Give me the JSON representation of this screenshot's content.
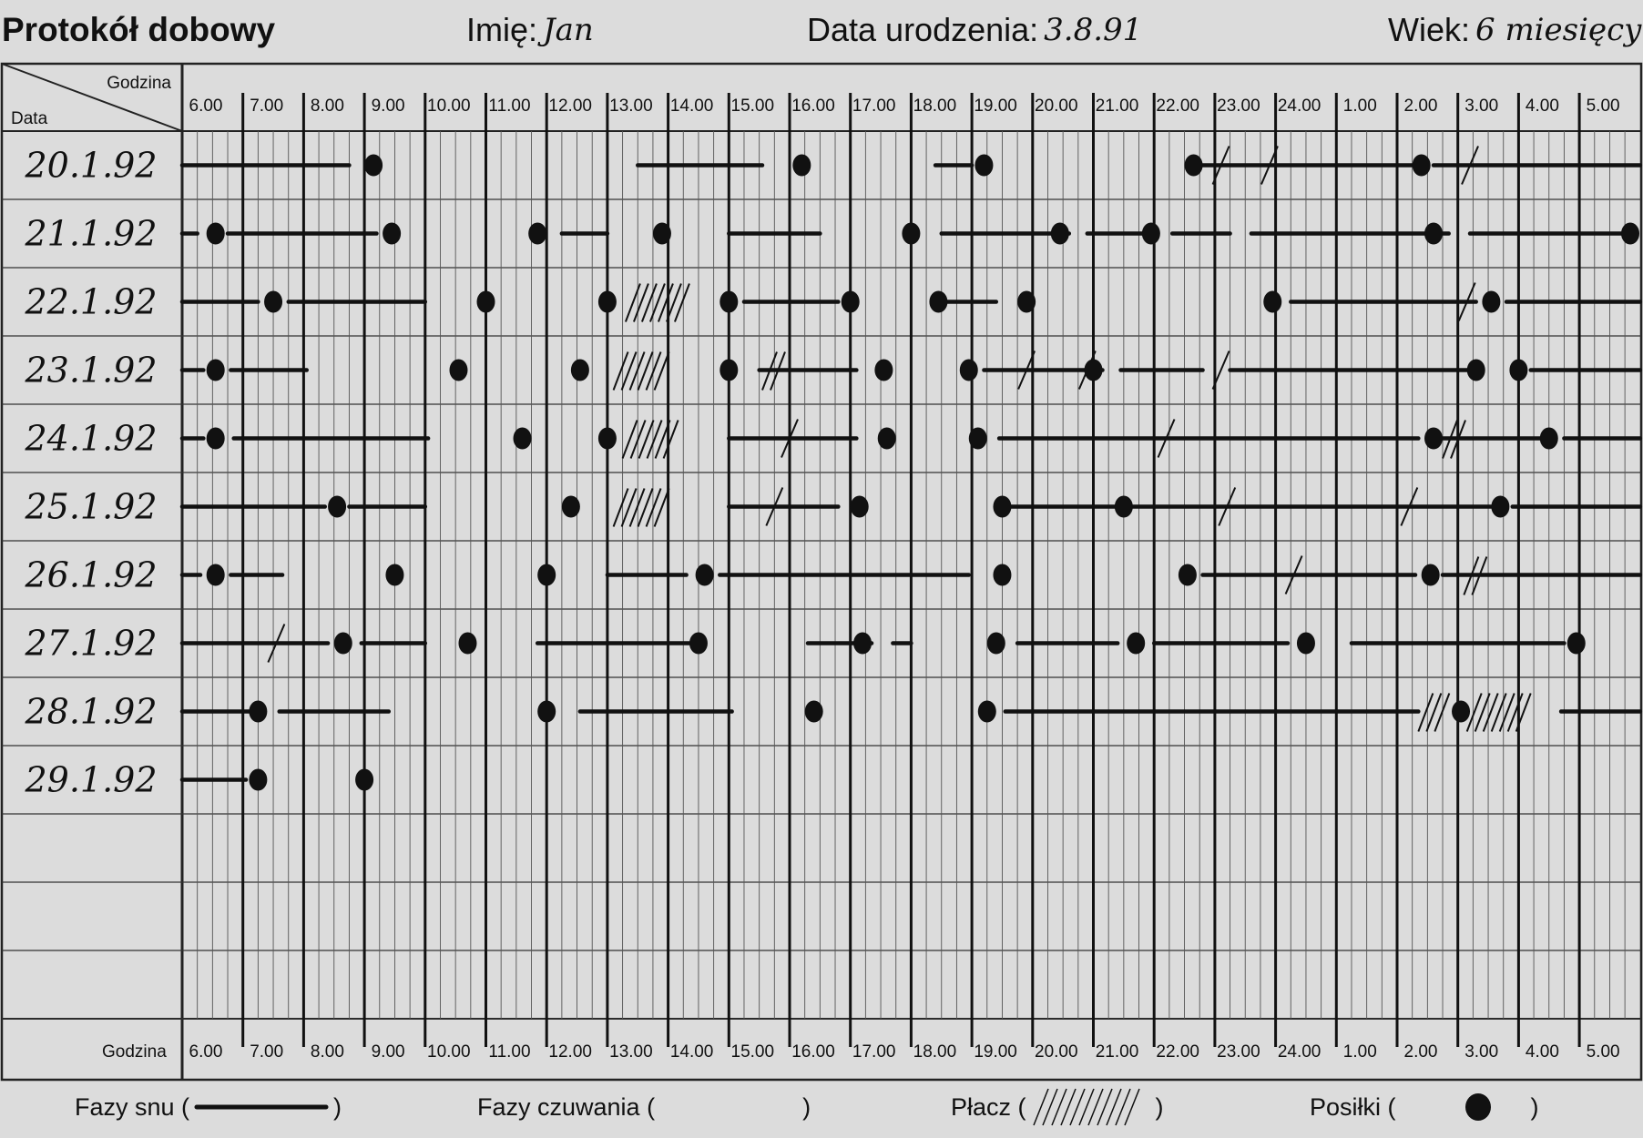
{
  "header": {
    "title": "Protokół dobowy",
    "name_label": "Imię:",
    "name_value": "Jan",
    "birth_label": "Data urodzenia:",
    "birth_value": "3.8.91",
    "age_label": "Wiek:",
    "age_value": "6 miesięcy"
  },
  "table": {
    "corner_hour_label": "Godzina",
    "corner_date_label": "Data",
    "bottom_hour_label": "Godzina",
    "hours": [
      "6.00",
      "7.00",
      "8.00",
      "9.00",
      "10.00",
      "11.00",
      "12.00",
      "13.00",
      "14.00",
      "15.00",
      "16.00",
      "17.00",
      "18.00",
      "19.00",
      "20.00",
      "21.00",
      "22.00",
      "23.00",
      "24.00",
      "1.00",
      "2.00",
      "3.00",
      "4.00",
      "5.00"
    ],
    "dates": [
      "20.1.92",
      "21.1.92",
      "22.1.92",
      "23.1.92",
      "24.1.92",
      "25.1.92",
      "26.1.92",
      "27.1.92",
      "28.1.92",
      "29.1.92",
      "",
      "",
      ""
    ]
  },
  "legend": {
    "sleep": "Fazy snu (",
    "awake": "Fazy czuwania (",
    "cry": "Płacz (",
    "meals": "Posiłki (",
    "close": ")"
  },
  "chart_data": {
    "type": "table",
    "time_unit": "hours since 6.00 (0 = 6.00, 24 = 6.00 next day)",
    "rows": [
      {
        "date": "20.1.92",
        "sleep": [
          [
            0,
            2.75
          ],
          [
            7.5,
            9.55
          ],
          [
            12.4,
            13
          ],
          [
            16.8,
            20.5
          ],
          [
            20.6,
            24
          ]
        ],
        "cry": [],
        "meals": [
          3.15,
          10.2,
          13.2,
          16.65,
          20.4
        ],
        "marks": [
          17.1,
          17.9,
          21.2
        ]
      },
      {
        "date": "21.1.92",
        "sleep": [
          [
            0,
            0.25
          ],
          [
            0.75,
            3.2
          ],
          [
            6.25,
            7
          ],
          [
            9,
            10.5
          ],
          [
            12.5,
            14.6
          ],
          [
            14.9,
            15.9
          ],
          [
            16.3,
            17.25
          ],
          [
            17.6,
            20.85
          ],
          [
            21.2,
            23.8
          ]
        ],
        "cry": [],
        "meals": [
          0.55,
          3.45,
          5.85,
          7.9,
          12,
          14.45,
          15.95,
          20.6,
          23.9
        ]
      },
      {
        "date": "22.1.92",
        "sleep": [
          [
            0,
            1.25
          ],
          [
            1.75,
            4
          ],
          [
            9.25,
            10.8
          ],
          [
            12.55,
            13.4
          ],
          [
            18.25,
            21.3
          ],
          [
            21.8,
            24
          ]
        ],
        "cry": [
          [
            7.3,
            8.3
          ]
        ],
        "meals": [
          1.5,
          5,
          7,
          9,
          11,
          12.45,
          13.9,
          17.95,
          21.55
        ],
        "marks": [
          21.15
        ]
      },
      {
        "date": "23.1.92",
        "sleep": [
          [
            0,
            0.35
          ],
          [
            0.8,
            2.05
          ],
          [
            9.5,
            11.1
          ],
          [
            13.2,
            15.15
          ],
          [
            15.45,
            16.8
          ],
          [
            17.25,
            21.15
          ],
          [
            22.2,
            24
          ]
        ],
        "cry": [
          [
            7.1,
            8
          ],
          [
            9.55,
            9.9
          ]
        ],
        "meals": [
          0.55,
          4.55,
          6.55,
          9,
          11.55,
          12.95,
          15,
          21.3,
          22
        ],
        "marks": [
          13.9,
          14.9,
          17.1
        ]
      },
      {
        "date": "24.1.92",
        "sleep": [
          [
            0,
            0.35
          ],
          [
            0.85,
            4.05
          ],
          [
            9,
            11.1
          ],
          [
            13.45,
            20.35
          ],
          [
            20.75,
            22.4
          ],
          [
            22.75,
            24
          ]
        ],
        "cry": [
          [
            7.25,
            8.1
          ],
          [
            20.75,
            21.1
          ]
        ],
        "meals": [
          0.55,
          5.6,
          7,
          11.6,
          13.1,
          20.6,
          22.5
        ],
        "marks": [
          10,
          16.2
        ]
      },
      {
        "date": "25.1.92",
        "sleep": [
          [
            0,
            2.35
          ],
          [
            2.75,
            4
          ],
          [
            9,
            10.8
          ],
          [
            13.5,
            21.55
          ],
          [
            21.9,
            24
          ]
        ],
        "cry": [
          [
            7.1,
            7.95
          ]
        ],
        "meals": [
          2.55,
          6.4,
          11.15,
          13.5,
          15.5,
          21.7
        ],
        "marks": [
          9.75,
          17.2,
          20.2
        ]
      },
      {
        "date": "26.1.92",
        "sleep": [
          [
            0,
            0.3
          ],
          [
            0.8,
            1.65
          ],
          [
            7,
            8.3
          ],
          [
            8.85,
            12.95
          ],
          [
            16.8,
            20.3
          ],
          [
            20.75,
            24
          ]
        ],
        "cry": [
          [
            21.1,
            21.45
          ]
        ],
        "meals": [
          0.55,
          3.5,
          6,
          8.6,
          13.5,
          16.55,
          20.55
        ],
        "marks": [
          18.3
        ]
      },
      {
        "date": "27.1.92",
        "sleep": [
          [
            0,
            2.4
          ],
          [
            2.95,
            4
          ],
          [
            5.85,
            8.35
          ],
          [
            10.3,
            11.35
          ],
          [
            11.7,
            12
          ],
          [
            13.75,
            15.4
          ],
          [
            16,
            18.2
          ],
          [
            19.25,
            22.75
          ]
        ],
        "cry": [],
        "meals": [
          2.65,
          4.7,
          8.5,
          11.2,
          13.4,
          15.7,
          18.5,
          22.95
        ],
        "marks": [
          1.55
        ]
      },
      {
        "date": "28.1.92",
        "sleep": [
          [
            0,
            1.25
          ],
          [
            1.6,
            3.4
          ],
          [
            6.55,
            9.05
          ],
          [
            13.55,
            20.35
          ],
          [
            22.7,
            24
          ]
        ],
        "cry": [
          [
            20.35,
            20.75
          ],
          [
            21.15,
            22.1
          ]
        ],
        "meals": [
          1.25,
          6,
          10.4,
          13.25,
          21.05
        ]
      },
      {
        "date": "29.1.92",
        "sleep": [
          [
            0,
            1.05
          ]
        ],
        "cry": [],
        "meals": [
          1.25,
          3
        ]
      }
    ]
  }
}
